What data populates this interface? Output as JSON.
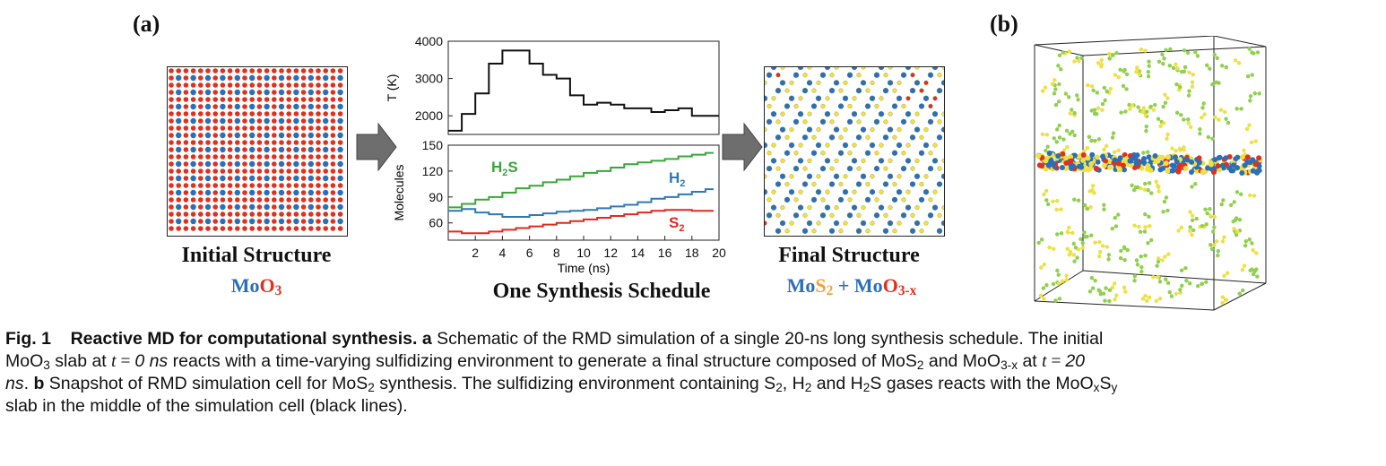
{
  "panel_a_label": "(a)",
  "panel_b_label": "(b)",
  "initial": {
    "title": "Initial Structure",
    "formula_main": "Mo",
    "formula_o": "O",
    "formula_sub": "3"
  },
  "schedule_title": "One Synthesis Schedule",
  "final": {
    "title": "Final Structure",
    "mo1": "Mo",
    "s": "S",
    "s_sub": "2",
    "plus": " + ",
    "mo2": "Mo",
    "o": "O",
    "o_sub": "3-x"
  },
  "chart_data": [
    {
      "type": "line",
      "name": "temperature",
      "ylabel": "T (K)",
      "xlabel": "",
      "ylim": [
        1500,
        4000
      ],
      "yticks": [
        2000,
        3000,
        4000
      ],
      "x": [
        0,
        1,
        2,
        3,
        4,
        5,
        6,
        7,
        8,
        9,
        10,
        11,
        12,
        13,
        14,
        15,
        16,
        17,
        18,
        20
      ],
      "values": [
        1600,
        2050,
        2600,
        3400,
        3750,
        3750,
        3400,
        3100,
        3000,
        2550,
        2300,
        2350,
        2300,
        2200,
        2200,
        2100,
        2150,
        2200,
        2000,
        2000
      ]
    },
    {
      "type": "line",
      "name": "molecules",
      "ylabel": "Molecules",
      "xlabel": "Time (ns)",
      "xlim": [
        0,
        20
      ],
      "ylim": [
        40,
        150
      ],
      "yticks": [
        60,
        90,
        120,
        150
      ],
      "xticks": [
        "2",
        "4",
        "6",
        "8",
        "10",
        "12",
        "14",
        "16",
        "18",
        "20"
      ],
      "series": [
        {
          "name": "H2S",
          "label": "H",
          "label_sub": "2",
          "label_tail": "S",
          "color": "#3aa63a",
          "x": [
            0,
            1,
            2,
            3,
            4,
            5,
            6,
            7,
            8,
            9,
            10,
            11,
            12,
            13,
            14,
            15,
            16,
            17,
            18,
            19
          ],
          "values": [
            78,
            82,
            87,
            90,
            95,
            100,
            103,
            107,
            110,
            114,
            118,
            120,
            124,
            128,
            130,
            132,
            134,
            137,
            139,
            141
          ]
        },
        {
          "name": "H2",
          "label": "H",
          "label_sub": "2",
          "label_tail": "",
          "color": "#2f79b5",
          "x": [
            0,
            1,
            2,
            3,
            4,
            5,
            6,
            7,
            8,
            9,
            10,
            11,
            12,
            13,
            14,
            15,
            16,
            17,
            18,
            19
          ],
          "values": [
            74,
            76,
            72,
            70,
            67,
            67,
            69,
            71,
            73,
            74,
            75,
            77,
            79,
            81,
            84,
            88,
            90,
            93,
            96,
            99
          ]
        },
        {
          "name": "S2",
          "label": "S",
          "label_sub": "2",
          "label_tail": "",
          "color": "#e02a1e",
          "x": [
            0,
            1,
            2,
            3,
            4,
            5,
            6,
            7,
            8,
            9,
            10,
            11,
            12,
            13,
            14,
            15,
            16,
            17,
            18,
            19
          ],
          "values": [
            50,
            48,
            48,
            50,
            52,
            54,
            56,
            58,
            60,
            62,
            64,
            66,
            68,
            70,
            72,
            74,
            75,
            75,
            74,
            74
          ]
        }
      ]
    }
  ],
  "caption": {
    "fig": "Fig. 1",
    "title": "Reactive MD for computational synthesis.",
    "a": "a",
    "text1": " Schematic of the RMD simulation of a single 20-ns long synthesis schedule. The initial",
    "text2a": "MoO",
    "text2b": "3",
    "text2c": " slab at ",
    "t0": "t",
    "eq0": " = ",
    "val0": "0 ns",
    "text2d": " reacts with a time-varying sulfidizing environment to generate a final structure composed of MoS",
    "text2e": "2",
    "text2f": " and MoO",
    "text2g": "3-x",
    "text2h": " at ",
    "t20": "t",
    "eq20": " = ",
    "val20": "20",
    "ns": "ns",
    "text3a": ". ",
    "b": "b",
    "text3b": " Snapshot of RMD simulation cell for MoS",
    "text3c": "2",
    "text3d": " synthesis. The sulfidizing environment containing S",
    "text3e": "2",
    "text3f": ", H",
    "text3g": "2",
    "text3h": " and H",
    "text3i": "2",
    "text3j": "S gases reacts with the MoO",
    "text3k": "x",
    "text3l": "S",
    "text3m": "y",
    "text4": "slab in the middle of the simulation cell (black lines)."
  },
  "colors": {
    "mo": "#2a6fb8",
    "o": "#e0301e",
    "s": "#f0e040",
    "gas": "#8fd14f"
  }
}
